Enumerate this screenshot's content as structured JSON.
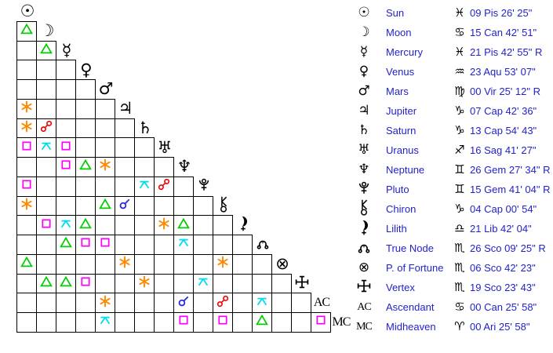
{
  "colors": {
    "text_blue": "#2222cc",
    "glyph_black": "#000000",
    "trine": "#00cc00",
    "sextile": "#ff8800",
    "square": "#ff00ff",
    "quincunx": "#00ddee",
    "opposition": "#ee0000",
    "conjunction": "#2222dd"
  },
  "aspect_grid": {
    "points": [
      {
        "name": "Sun",
        "glyph": "☉"
      },
      {
        "name": "Moon",
        "glyph": "☽"
      },
      {
        "name": "Mercury",
        "glyph": "☿"
      },
      {
        "name": "Venus",
        "glyph": "♀"
      },
      {
        "name": "Mars",
        "glyph": "♂"
      },
      {
        "name": "Jupiter",
        "glyph": "♃"
      },
      {
        "name": "Saturn",
        "glyph": "♄"
      },
      {
        "name": "Uranus",
        "glyph": "♅"
      },
      {
        "name": "Neptune",
        "glyph": "♆"
      },
      {
        "name": "Pluto",
        "glyph": "svg:pluto"
      },
      {
        "name": "Chiron",
        "glyph": "svg:chiron"
      },
      {
        "name": "Lilith",
        "glyph": "svg:lilith"
      },
      {
        "name": "True Node",
        "glyph": "svg:truenode"
      },
      {
        "name": "P. of Fortune",
        "glyph": "⊗"
      },
      {
        "name": "Vertex",
        "glyph": "svg:vertex"
      },
      {
        "name": "Ascendant",
        "glyph": "text:AC"
      },
      {
        "name": "Midheaven",
        "glyph": "text:MC"
      }
    ],
    "aspects": [
      {
        "row": 1,
        "col": 0,
        "type": "trine"
      },
      {
        "row": 2,
        "col": 1,
        "type": "trine"
      },
      {
        "row": 5,
        "col": 0,
        "type": "sextile"
      },
      {
        "row": 6,
        "col": 0,
        "type": "sextile"
      },
      {
        "row": 6,
        "col": 1,
        "type": "opposition"
      },
      {
        "row": 7,
        "col": 0,
        "type": "square"
      },
      {
        "row": 7,
        "col": 1,
        "type": "quincunx"
      },
      {
        "row": 7,
        "col": 2,
        "type": "square"
      },
      {
        "row": 8,
        "col": 2,
        "type": "square"
      },
      {
        "row": 8,
        "col": 3,
        "type": "trine"
      },
      {
        "row": 8,
        "col": 4,
        "type": "sextile"
      },
      {
        "row": 9,
        "col": 0,
        "type": "square"
      },
      {
        "row": 9,
        "col": 6,
        "type": "quincunx"
      },
      {
        "row": 9,
        "col": 7,
        "type": "opposition"
      },
      {
        "row": 10,
        "col": 0,
        "type": "sextile"
      },
      {
        "row": 10,
        "col": 4,
        "type": "trine"
      },
      {
        "row": 10,
        "col": 5,
        "type": "conjunction"
      },
      {
        "row": 11,
        "col": 1,
        "type": "square"
      },
      {
        "row": 11,
        "col": 2,
        "type": "quincunx"
      },
      {
        "row": 11,
        "col": 3,
        "type": "trine"
      },
      {
        "row": 11,
        "col": 7,
        "type": "sextile"
      },
      {
        "row": 11,
        "col": 8,
        "type": "trine"
      },
      {
        "row": 12,
        "col": 2,
        "type": "trine"
      },
      {
        "row": 12,
        "col": 3,
        "type": "square"
      },
      {
        "row": 12,
        "col": 4,
        "type": "square"
      },
      {
        "row": 12,
        "col": 8,
        "type": "quincunx"
      },
      {
        "row": 13,
        "col": 0,
        "type": "trine"
      },
      {
        "row": 13,
        "col": 5,
        "type": "sextile"
      },
      {
        "row": 13,
        "col": 10,
        "type": "sextile"
      },
      {
        "row": 14,
        "col": 1,
        "type": "trine"
      },
      {
        "row": 14,
        "col": 2,
        "type": "trine"
      },
      {
        "row": 14,
        "col": 3,
        "type": "square"
      },
      {
        "row": 14,
        "col": 6,
        "type": "sextile"
      },
      {
        "row": 14,
        "col": 9,
        "type": "quincunx"
      },
      {
        "row": 15,
        "col": 4,
        "type": "sextile"
      },
      {
        "row": 15,
        "col": 8,
        "type": "conjunction"
      },
      {
        "row": 15,
        "col": 10,
        "type": "opposition"
      },
      {
        "row": 15,
        "col": 12,
        "type": "quincunx"
      },
      {
        "row": 16,
        "col": 4,
        "type": "quincunx"
      },
      {
        "row": 16,
        "col": 8,
        "type": "square"
      },
      {
        "row": 16,
        "col": 10,
        "type": "square"
      },
      {
        "row": 16,
        "col": 12,
        "type": "trine"
      },
      {
        "row": 16,
        "col": 15,
        "type": "square"
      }
    ]
  },
  "positions_table": {
    "rows": [
      {
        "name": "Sun",
        "glyph": "☉",
        "sign": "Pisces",
        "sign_glyph": "♓",
        "position": "09 Pis 26' 25\""
      },
      {
        "name": "Moon",
        "glyph": "☽",
        "sign": "Cancer",
        "sign_glyph": "♋",
        "position": "15 Can 42' 51\""
      },
      {
        "name": "Mercury",
        "glyph": "☿",
        "sign": "Pisces",
        "sign_glyph": "♓",
        "position": "21 Pis 42' 55\" R"
      },
      {
        "name": "Venus",
        "glyph": "♀",
        "sign": "Aquarius",
        "sign_glyph": "♒",
        "position": "23 Aqu 53' 07\""
      },
      {
        "name": "Mars",
        "glyph": "♂",
        "sign": "Virgo",
        "sign_glyph": "♍",
        "position": "00 Vir 25' 12\" R"
      },
      {
        "name": "Jupiter",
        "glyph": "♃",
        "sign": "Capricorn",
        "sign_glyph": "♑",
        "position": "07 Cap 42' 36\""
      },
      {
        "name": "Saturn",
        "glyph": "♄",
        "sign": "Capricorn",
        "sign_glyph": "♑",
        "position": "13 Cap 54' 43\""
      },
      {
        "name": "Uranus",
        "glyph": "♅",
        "sign": "Sagittarius",
        "sign_glyph": "♐",
        "position": "16 Sag 41' 27\""
      },
      {
        "name": "Neptune",
        "glyph": "♆",
        "sign": "Gemini",
        "sign_glyph": "♊",
        "position": "26 Gem 27' 34\" R"
      },
      {
        "name": "Pluto",
        "glyph": "svg:pluto",
        "sign": "Gemini",
        "sign_glyph": "♊",
        "position": "15 Gem 41' 04\" R"
      },
      {
        "name": "Chiron",
        "glyph": "svg:chiron",
        "sign": "Capricorn",
        "sign_glyph": "♑",
        "position": "04 Cap 00' 54\""
      },
      {
        "name": "Lilith",
        "glyph": "svg:lilith",
        "sign": "Libra",
        "sign_glyph": "♎",
        "position": "21 Lib 42' 04\""
      },
      {
        "name": "True Node",
        "glyph": "svg:truenode",
        "sign": "Scorpio",
        "sign_glyph": "♏",
        "position": "26 Sco 09' 25\" R"
      },
      {
        "name": "P. of Fortune",
        "glyph": "⊗",
        "sign": "Scorpio",
        "sign_glyph": "♏",
        "position": "06 Sco 42' 23\""
      },
      {
        "name": "Vertex",
        "glyph": "svg:vertex",
        "sign": "Scorpio",
        "sign_glyph": "♏",
        "position": "19 Sco 23' 43\""
      },
      {
        "name": "Ascendant",
        "glyph": "text:AC",
        "sign": "Cancer",
        "sign_glyph": "♋",
        "position": "00 Can 25' 58\""
      },
      {
        "name": "Midheaven",
        "glyph": "text:MC",
        "sign": "Aries",
        "sign_glyph": "♈",
        "position": "00 Ari 25' 58\""
      }
    ]
  }
}
